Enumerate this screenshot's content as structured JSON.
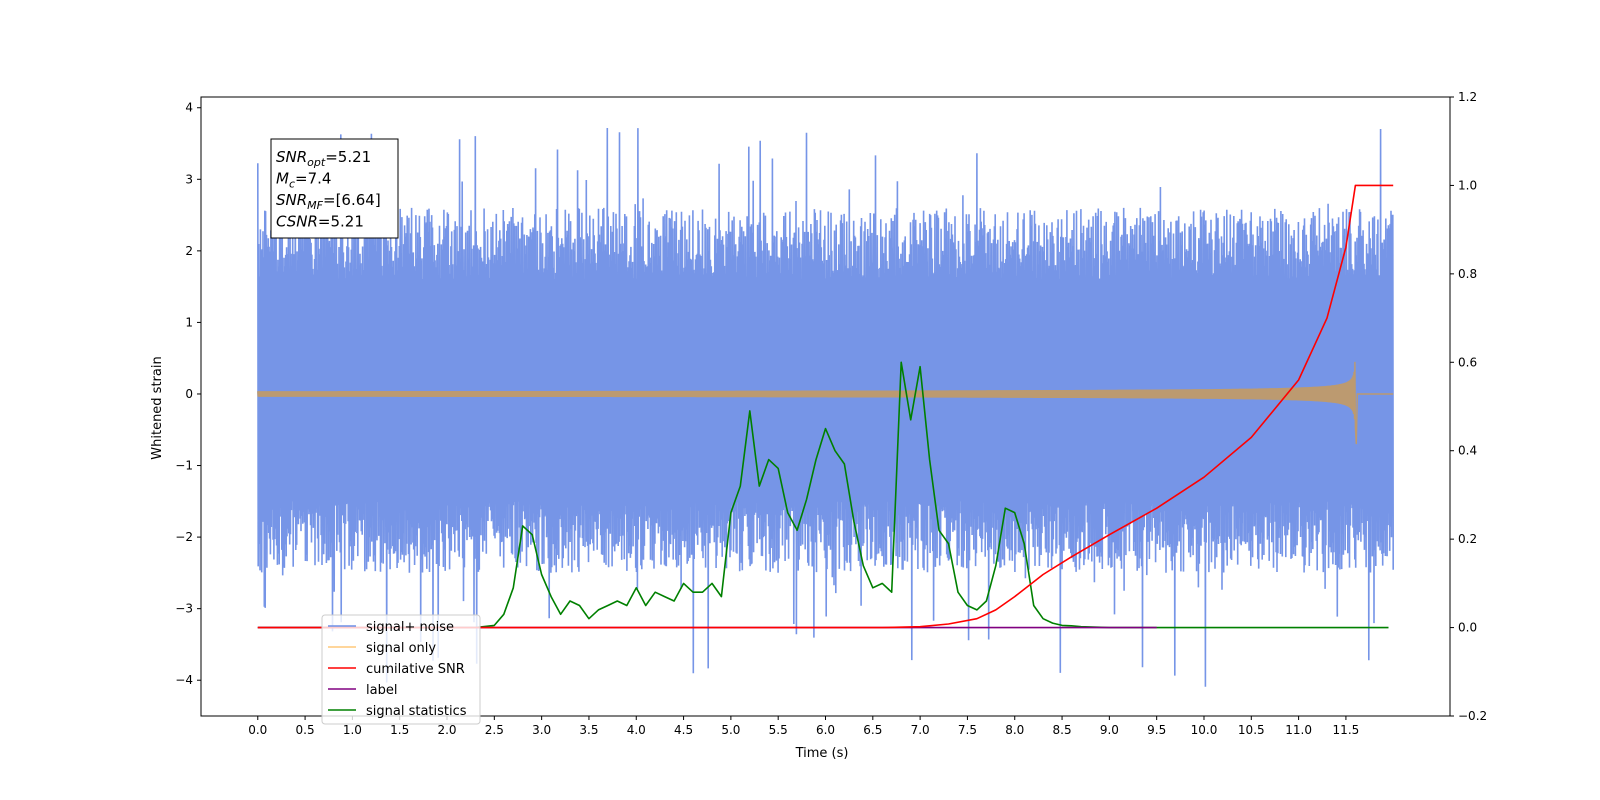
{
  "chart_data": {
    "type": "line",
    "xlabel": "Time (s)",
    "ylabel": "Whitened strain",
    "xlim": [
      -0.6,
      12.6
    ],
    "ylim_left": [
      -4.5,
      4.15
    ],
    "ylim_right": [
      -0.2,
      1.2
    ],
    "x_ticks": [
      "0.0",
      "0.5",
      "1.0",
      "1.5",
      "2.0",
      "2.5",
      "3.0",
      "3.5",
      "4.0",
      "4.5",
      "5.0",
      "5.5",
      "6.0",
      "6.5",
      "7.0",
      "7.5",
      "8.0",
      "8.5",
      "9.0",
      "9.5",
      "10.0",
      "10.5",
      "11.0",
      "11.5"
    ],
    "y_ticks_left": [
      "−4",
      "−3",
      "−2",
      "−1",
      "0",
      "1",
      "2",
      "3",
      "4"
    ],
    "y_ticks_right": [
      "−0.2",
      "0.0",
      "0.2",
      "0.4",
      "0.6",
      "0.8",
      "1.0",
      "1.2"
    ],
    "annotation": {
      "lines": [
        {
          "base": "SNR",
          "sub": "opt",
          "value": "=5.21"
        },
        {
          "base": "M",
          "sub": "c",
          "value": "=7.4"
        },
        {
          "base": "SNR",
          "sub": "MF",
          "value": "=[6.64]"
        },
        {
          "base": "CSNR",
          "sub": "",
          "value": "=5.21"
        }
      ]
    },
    "legend_position": "lower-left",
    "series": [
      {
        "name": "signal+ noise",
        "axis": "left",
        "color": "#6f8fe6",
        "style": "noise",
        "x_range": [
          0,
          12.0
        ],
        "amplitude_band": [
          -1.5,
          1.6
        ],
        "max_spike": 3.75,
        "min_spike": -4.12
      },
      {
        "name": "signal only",
        "axis": "left",
        "color": "#bc9a70",
        "style": "chirp",
        "x_range": [
          0,
          12.0
        ],
        "merger_time": 11.6,
        "peak_amplitude": 0.52
      },
      {
        "name": "cumilative SNR",
        "axis": "right",
        "color": "#ff0000",
        "x": [
          0,
          6.6,
          7.0,
          7.3,
          7.6,
          7.8,
          8.0,
          8.3,
          8.6,
          9.0,
          9.5,
          10.0,
          10.5,
          11.0,
          11.3,
          11.5,
          11.6,
          12.0
        ],
        "y": [
          0,
          0,
          0.002,
          0.008,
          0.02,
          0.04,
          0.07,
          0.12,
          0.16,
          0.21,
          0.27,
          0.34,
          0.43,
          0.56,
          0.7,
          0.86,
          1.0,
          1.0
        ]
      },
      {
        "name": "label",
        "axis": "right",
        "color": "#800080",
        "x": [
          0,
          9.5
        ],
        "y": [
          0,
          0
        ]
      },
      {
        "name": "signal statistics",
        "axis": "right",
        "color": "#008000",
        "x": [
          0,
          2.3,
          2.5,
          2.6,
          2.7,
          2.8,
          2.9,
          3.0,
          3.1,
          3.2,
          3.3,
          3.4,
          3.5,
          3.6,
          3.7,
          3.8,
          3.9,
          4.0,
          4.1,
          4.2,
          4.3,
          4.4,
          4.5,
          4.6,
          4.7,
          4.8,
          4.9,
          5.0,
          5.1,
          5.2,
          5.3,
          5.4,
          5.5,
          5.6,
          5.7,
          5.8,
          5.9,
          6.0,
          6.1,
          6.2,
          6.3,
          6.4,
          6.5,
          6.6,
          6.7,
          6.8,
          6.9,
          7.0,
          7.1,
          7.2,
          7.3,
          7.4,
          7.5,
          7.6,
          7.7,
          7.8,
          7.9,
          8.0,
          8.1,
          8.2,
          8.3,
          8.4,
          8.5,
          8.6,
          8.7,
          9.0,
          9.5,
          10.0,
          11.0,
          11.95
        ],
        "y": [
          0,
          0.0,
          0.005,
          0.03,
          0.09,
          0.23,
          0.21,
          0.12,
          0.07,
          0.03,
          0.06,
          0.05,
          0.02,
          0.04,
          0.05,
          0.06,
          0.05,
          0.09,
          0.05,
          0.08,
          0.07,
          0.06,
          0.1,
          0.08,
          0.08,
          0.1,
          0.07,
          0.26,
          0.32,
          0.49,
          0.32,
          0.38,
          0.36,
          0.26,
          0.22,
          0.29,
          0.38,
          0.45,
          0.4,
          0.37,
          0.24,
          0.14,
          0.09,
          0.1,
          0.08,
          0.6,
          0.47,
          0.59,
          0.38,
          0.22,
          0.19,
          0.08,
          0.05,
          0.04,
          0.06,
          0.14,
          0.27,
          0.26,
          0.19,
          0.05,
          0.02,
          0.01,
          0.005,
          0.004,
          0.002,
          0.0,
          0.0,
          0.0,
          0.0,
          0.0
        ]
      }
    ]
  }
}
